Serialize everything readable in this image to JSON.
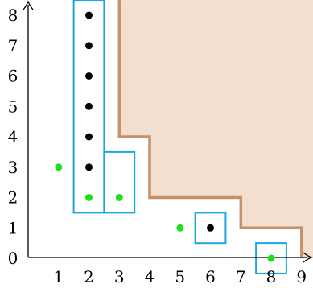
{
  "axes": {
    "x_ticks": [
      "1",
      "2",
      "3",
      "4",
      "5",
      "6",
      "7",
      "8",
      "9"
    ],
    "y_ticks": [
      "0",
      "1",
      "2",
      "3",
      "4",
      "5",
      "6",
      "7",
      "8"
    ]
  },
  "colors": {
    "region_fill": "#f2dfcf",
    "region_border": "#c4926a",
    "box_stroke": "#1aa7e0",
    "black_point": "#000000",
    "green_point": "#22dd22"
  },
  "staircase": [
    [
      3,
      8.5
    ],
    [
      3,
      4
    ],
    [
      4,
      4
    ],
    [
      4,
      2
    ],
    [
      7,
      2
    ],
    [
      7,
      1
    ],
    [
      9,
      1
    ],
    [
      9,
      0
    ]
  ],
  "black_points": [
    [
      2,
      8
    ],
    [
      2,
      7
    ],
    [
      2,
      6
    ],
    [
      2,
      5
    ],
    [
      2,
      4
    ],
    [
      2,
      3
    ],
    [
      6,
      1
    ]
  ],
  "green_points": [
    [
      1,
      3
    ],
    [
      2,
      2
    ],
    [
      3,
      2
    ],
    [
      5,
      1
    ],
    [
      8,
      0
    ]
  ],
  "boxes": [
    {
      "x0": 1.5,
      "x1": 2.5,
      "y0": 1.5,
      "y1": 8.5
    },
    {
      "x0": 2.5,
      "x1": 3.5,
      "y0": 1.5,
      "y1": 3.5
    },
    {
      "x0": 5.5,
      "x1": 6.5,
      "y0": 0.5,
      "y1": 1.5
    },
    {
      "x0": 7.5,
      "x1": 8.5,
      "y0": -0.5,
      "y1": 0.5
    }
  ]
}
